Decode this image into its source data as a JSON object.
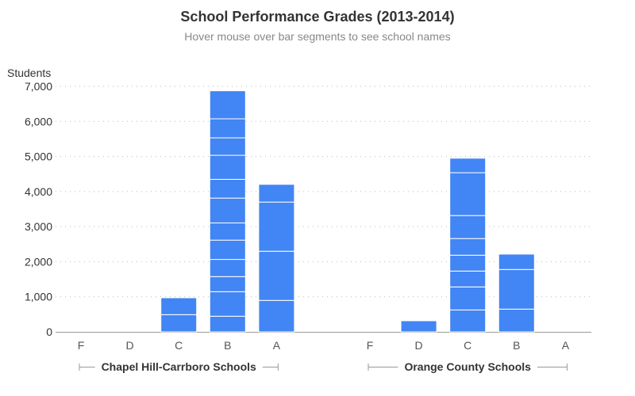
{
  "chart_data": {
    "type": "bar",
    "stacked": true,
    "title": "School Performance Grades (2013-2014)",
    "subtitle": "Hover mouse over bar segments to see school names",
    "ylabel": "Students",
    "ylim": [
      0,
      7000
    ],
    "yticks": [
      0,
      1000,
      2000,
      3000,
      4000,
      5000,
      6000,
      7000
    ],
    "ytick_labels": [
      "0",
      "1,000",
      "2,000",
      "3,000",
      "4,000",
      "5,000",
      "6,000",
      "7,000"
    ],
    "grid": true,
    "bar_color": "#4285f4",
    "groups": [
      {
        "name": "Chapel Hill-Carrboro Schools",
        "categories": [
          "F",
          "D",
          "C",
          "B",
          "A"
        ],
        "segments": [
          [],
          [],
          [
            490,
            482
          ],
          [
            445,
            700,
            430,
            490,
            550,
            490,
            708,
            535,
            686,
            497,
            543,
            799
          ],
          [
            897,
            1401,
            1402,
            505
          ]
        ]
      },
      {
        "name": "Orange County Schools",
        "categories": [
          "F",
          "D",
          "C",
          "B",
          "A"
        ],
        "segments": [
          [],
          [
            316
          ],
          [
            625,
            656,
            452,
            452,
            475,
            656,
            1221,
            414
          ],
          [
            648,
            1130,
            438
          ],
          []
        ]
      }
    ]
  }
}
